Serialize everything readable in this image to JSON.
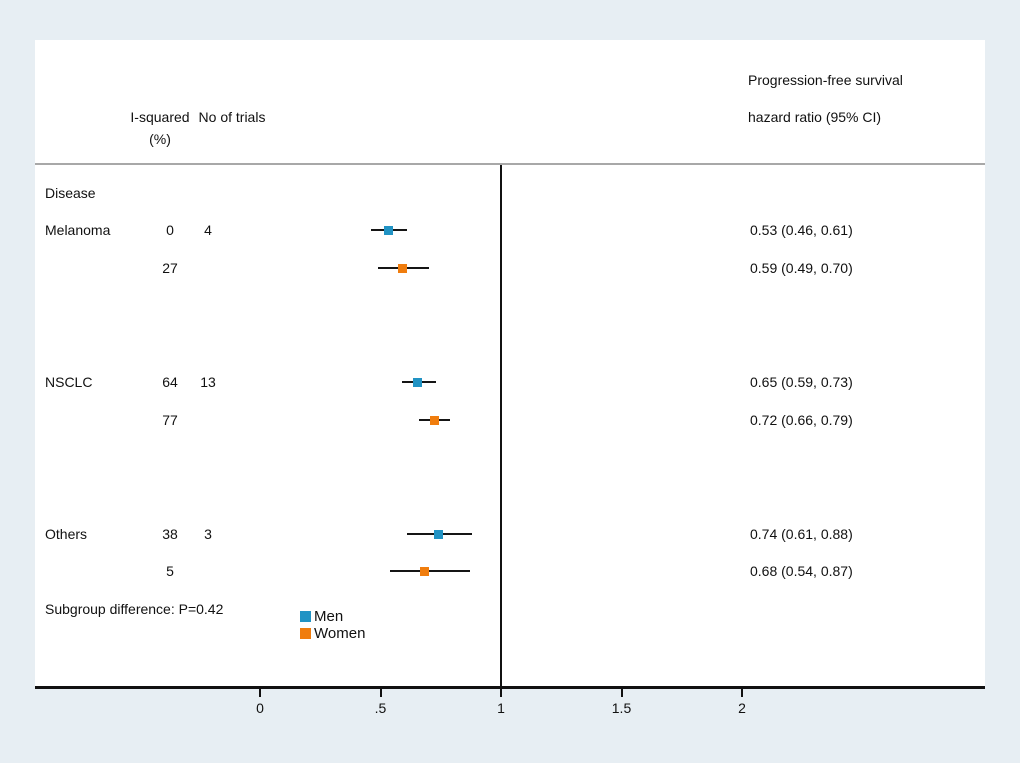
{
  "chart_data": {
    "type": "forest",
    "header": {
      "i_squared_line1": "I-squared",
      "i_squared_line2": "(%)",
      "no_of_trials": "No of trials",
      "outcome_line1": "Progression-free survival",
      "outcome_line2": "hazard ratio (95% CI)"
    },
    "section_label": "Disease",
    "x_axis": {
      "ticks": [
        {
          "value": 0,
          "label": "0"
        },
        {
          "value": 0.5,
          "label": ".5"
        },
        {
          "value": 1,
          "label": "1"
        },
        {
          "value": 1.5,
          "label": "1.5"
        },
        {
          "value": 2,
          "label": "2"
        }
      ],
      "reference_line_value": 1,
      "range_shown": [
        -0.9,
        3.0
      ]
    },
    "rows": [
      {
        "group": "Melanoma",
        "series": "Men",
        "i_squared": "0",
        "trials": "4",
        "hr": 0.53,
        "ci_low": 0.46,
        "ci_high": 0.61,
        "hr_text": "0.53 (0.46, 0.61)"
      },
      {
        "group": "",
        "series": "Women",
        "i_squared": "27",
        "trials": "",
        "hr": 0.59,
        "ci_low": 0.49,
        "ci_high": 0.7,
        "hr_text": "0.59 (0.49, 0.70)"
      },
      {
        "group": "NSCLC",
        "series": "Men",
        "i_squared": "64",
        "trials": "13",
        "hr": 0.65,
        "ci_low": 0.59,
        "ci_high": 0.73,
        "hr_text": "0.65 (0.59, 0.73)"
      },
      {
        "group": "",
        "series": "Women",
        "i_squared": "77",
        "trials": "",
        "hr": 0.72,
        "ci_low": 0.66,
        "ci_high": 0.79,
        "hr_text": "0.72 (0.66, 0.79)"
      },
      {
        "group": "Others",
        "series": "Men",
        "i_squared": "38",
        "trials": "3",
        "hr": 0.74,
        "ci_low": 0.61,
        "ci_high": 0.88,
        "hr_text": "0.74 (0.61, 0.88)"
      },
      {
        "group": "",
        "series": "Women",
        "i_squared": "5",
        "trials": "",
        "hr": 0.68,
        "ci_low": 0.54,
        "ci_high": 0.87,
        "hr_text": "0.68 (0.54, 0.87)"
      }
    ],
    "footer_note": "Subgroup difference: P=0.42",
    "legend": {
      "position": "bottom-center-left",
      "items": [
        {
          "label": "Men",
          "color": "#2193c4"
        },
        {
          "label": "Women",
          "color": "#f07d0e"
        }
      ]
    },
    "colors": {
      "men": "#2193c4",
      "women": "#f07d0e",
      "axis": "#111111",
      "header_rule": "#a8a8a8",
      "background": "#e7eef3",
      "plot_background": "#ffffff"
    }
  }
}
